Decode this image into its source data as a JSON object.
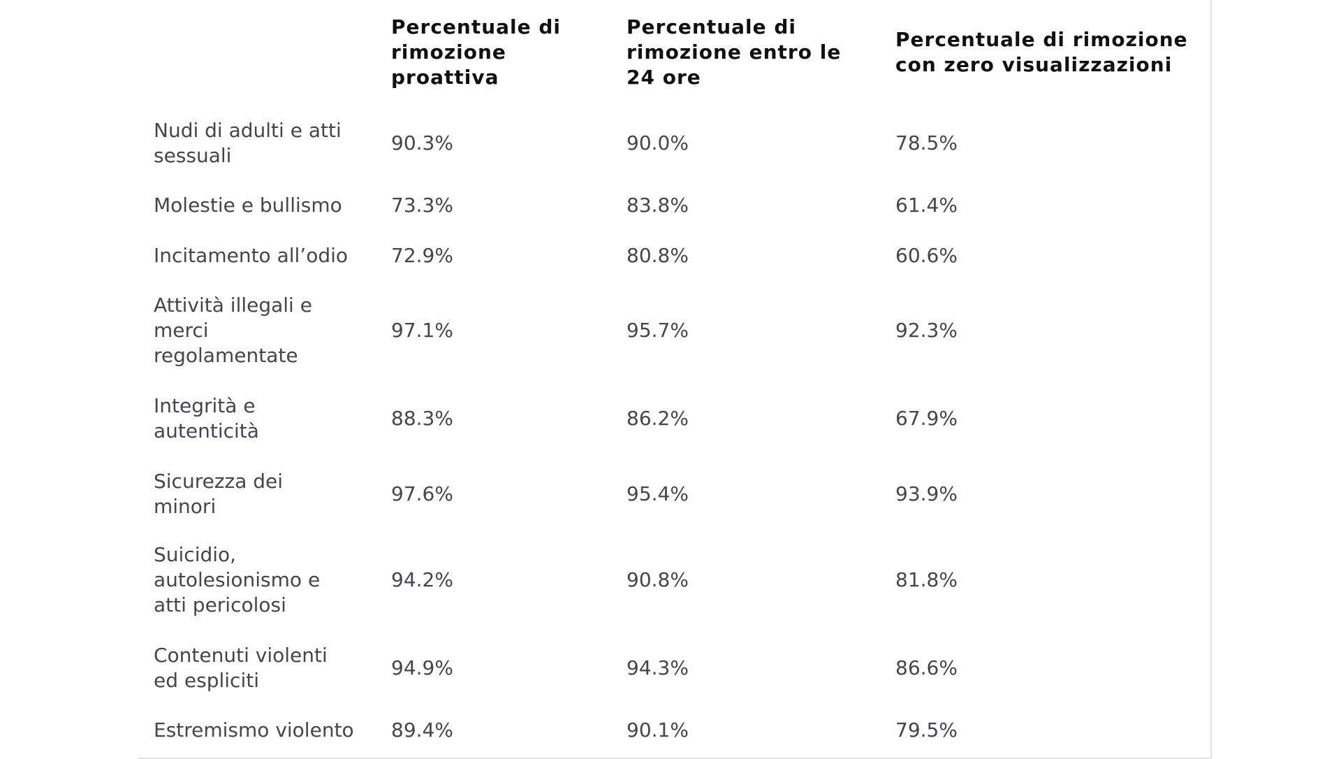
{
  "table": {
    "header": [
      [
        "Percentuale di",
        "rimozione",
        "proattiva"
      ],
      [
        "Percentuale di",
        "rimozione entro le",
        "24 ore"
      ],
      [
        "Percentuale di rimozione",
        "con zero visualizzazioni"
      ]
    ],
    "rows": [
      {
        "label": [
          "Nudi di adulti e atti",
          "sessuali"
        ],
        "cells": [
          "90.3%",
          "90.0%",
          "78.5%"
        ]
      },
      {
        "label": [
          "Molestie e bullismo"
        ],
        "cells": [
          "73.3%",
          "83.8%",
          "61.4%"
        ]
      },
      {
        "label": [
          "Incitamento all’odio"
        ],
        "cells": [
          "72.9%",
          "80.8%",
          "60.6%"
        ]
      },
      {
        "label": [
          "Attività illegali e",
          "merci",
          "regolamentate"
        ],
        "cells": [
          "97.1%",
          "95.7%",
          "92.3%"
        ]
      },
      {
        "label": [
          "Integrità e",
          "autenticità"
        ],
        "cells": [
          "88.3%",
          "86.2%",
          "67.9%"
        ]
      },
      {
        "label": [
          "Sicurezza dei",
          "minori"
        ],
        "cells": [
          "97.6%",
          "95.4%",
          "93.9%"
        ]
      },
      {
        "label": [
          "Suicidio,",
          "autolesionismo e",
          "atti pericolosi"
        ],
        "cells": [
          "94.2%",
          "90.8%",
          "81.8%"
        ]
      },
      {
        "label": [
          "Contenuti violenti",
          "ed espliciti"
        ],
        "cells": [
          "94.9%",
          "94.3%",
          "86.6%"
        ]
      },
      {
        "label": [
          "Estremismo violento"
        ],
        "cells": [
          "89.4%",
          "90.1%",
          "79.5%"
        ]
      }
    ]
  }
}
